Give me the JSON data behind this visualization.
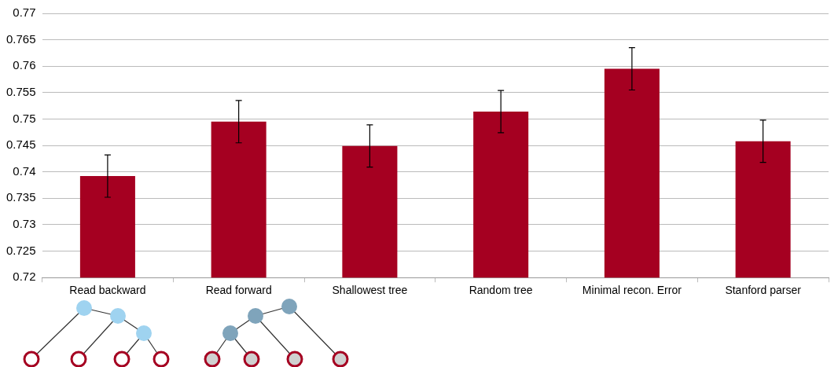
{
  "chart_data": {
    "type": "bar",
    "categories": [
      "Read backward",
      "Read forward",
      "Shallowest tree",
      "Random tree",
      "Minimal recon. Error",
      "Stanford parser"
    ],
    "values": [
      0.7392,
      0.7495,
      0.7449,
      0.7514,
      0.7595,
      0.7458
    ],
    "errors": [
      0.004,
      0.004,
      0.004,
      0.004,
      0.004,
      0.004
    ],
    "color": "#a50021",
    "ylim": [
      0.72,
      0.77
    ],
    "yticks": [
      0.72,
      0.725,
      0.73,
      0.735,
      0.74,
      0.745,
      0.75,
      0.755,
      0.76,
      0.765,
      0.77
    ],
    "grid": "y"
  }
}
